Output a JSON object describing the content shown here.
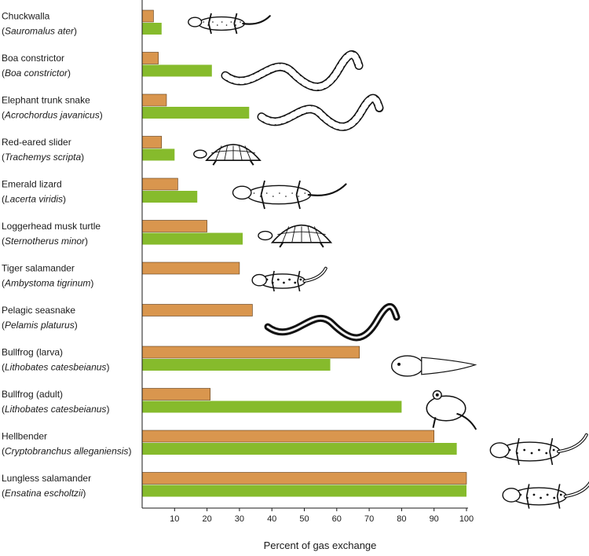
{
  "chart_data": {
    "type": "bar",
    "orientation": "horizontal",
    "xlabel": "Percent of gas exchange",
    "xlim": [
      0,
      100
    ],
    "xticks": [
      10,
      20,
      30,
      40,
      50,
      60,
      70,
      80,
      90,
      100
    ],
    "categories": [
      {
        "name": "Chuckwalla",
        "sci": "Sauromalus ater"
      },
      {
        "name": "Boa constrictor",
        "sci": "Boa constrictor"
      },
      {
        "name": "Elephant trunk snake",
        "sci": "Acrochordus javanicus"
      },
      {
        "name": "Red-eared slider",
        "sci": "Trachemys scripta"
      },
      {
        "name": "Emerald lizard",
        "sci": "Lacerta viridis"
      },
      {
        "name": "Loggerhead musk turtle",
        "sci": "Sternotherus minor"
      },
      {
        "name": "Tiger salamander",
        "sci": "Ambystoma tigrinum"
      },
      {
        "name": "Pelagic seasnake",
        "sci": "Pelamis platurus"
      },
      {
        "name": "Bullfrog (larva)",
        "sci": "Lithobates catesbeianus"
      },
      {
        "name": "Bullfrog (adult)",
        "sci": "Lithobates catesbeianus"
      },
      {
        "name": "Hellbender",
        "sci": "Cryptobranchus alleganiensis"
      },
      {
        "name": "Lungless salamander",
        "sci": "Ensatina escholtzii"
      }
    ],
    "series": [
      {
        "color": "#d9964e",
        "values": [
          3.5,
          5,
          7.5,
          6,
          11,
          20,
          30,
          34,
          67,
          21,
          90,
          100
        ]
      },
      {
        "color": "#86bb2c",
        "values": [
          6,
          21.5,
          33,
          10,
          17,
          31,
          null,
          null,
          58,
          80,
          97,
          100
        ]
      }
    ],
    "grid": false,
    "legend": "none",
    "animal_icons": [
      "lizard-icon",
      "snake-icon",
      "snake-icon",
      "turtle-icon",
      "lizard-icon",
      "turtle-icon",
      "salamander-icon",
      "seasnake-icon",
      "tadpole-icon",
      "frog-icon",
      "salamander-icon",
      "salamander-icon"
    ]
  }
}
